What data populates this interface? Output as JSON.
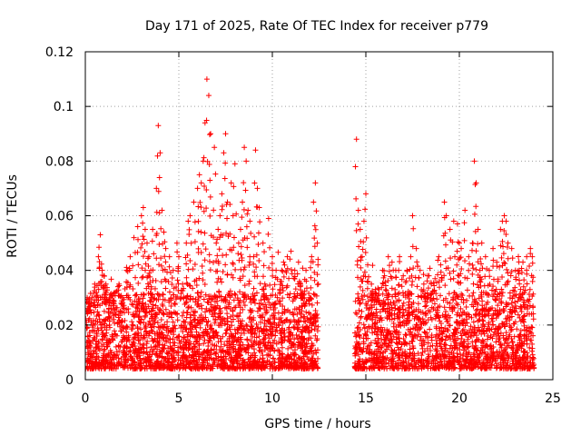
{
  "chart_data": {
    "type": "scatter",
    "title": "Day 171 of 2025, Rate Of TEC Index for receiver p779",
    "xlabel": "GPS time / hours",
    "ylabel": "ROTI / TECUs",
    "xlim": [
      0,
      25
    ],
    "ylim": [
      0,
      0.12
    ],
    "xticks": [
      0,
      5,
      10,
      15,
      20,
      25
    ],
    "xtick_labels": [
      "0",
      "5",
      "10",
      "15",
      "20",
      "25"
    ],
    "yticks": [
      0,
      0.02,
      0.04,
      0.06,
      0.08,
      0.1,
      0.12
    ],
    "ytick_labels": [
      "0",
      "0.02",
      "0.04",
      "0.06",
      "0.08",
      "0.1",
      "0.12"
    ],
    "grid": true,
    "marker": "plus",
    "color": "#ff0000",
    "data_gap_hours": [
      12.45,
      14.4
    ],
    "series": [
      {
        "name": "ROTI",
        "x": [
          0.1,
          0.2,
          0.3,
          0.5,
          0.7,
          0.8,
          0.9,
          1.0,
          1.1,
          1.3,
          1.5,
          1.6,
          1.8,
          2.0,
          2.2,
          2.4,
          2.6,
          2.8,
          3.0,
          3.1,
          3.2,
          3.3,
          3.4,
          3.5,
          3.6,
          3.8,
          3.9,
          4.0,
          4.1,
          4.2,
          4.3,
          4.5,
          4.7,
          4.9,
          5.0,
          5.2,
          5.4,
          5.5,
          5.6,
          5.8,
          6.0,
          6.1,
          6.2,
          6.3,
          6.4,
          6.5,
          6.6,
          6.7,
          6.9,
          7.0,
          7.1,
          7.2,
          7.3,
          7.4,
          7.5,
          7.6,
          7.8,
          7.9,
          8.0,
          8.2,
          8.3,
          8.4,
          8.5,
          8.6,
          8.7,
          8.8,
          9.0,
          9.1,
          9.2,
          9.3,
          9.5,
          9.6,
          9.8,
          10.0,
          10.2,
          10.4,
          10.5,
          10.6,
          10.8,
          11.0,
          11.2,
          11.4,
          11.5,
          11.6,
          11.8,
          12.0,
          12.1,
          12.2,
          12.3,
          12.4,
          14.5,
          14.6,
          14.7,
          14.8,
          14.9,
          15.0,
          15.1,
          15.3,
          15.5,
          15.7,
          15.9,
          16.0,
          16.2,
          16.4,
          16.6,
          16.8,
          17.0,
          17.2,
          17.4,
          17.5,
          17.7,
          17.9,
          18.1,
          18.3,
          18.5,
          18.7,
          18.9,
          19.0,
          19.2,
          19.3,
          19.5,
          19.7,
          19.9,
          20.0,
          20.1,
          20.3,
          20.5,
          20.7,
          20.8,
          20.9,
          21.0,
          21.1,
          21.2,
          21.4,
          21.6,
          21.8,
          22.0,
          22.2,
          22.3,
          22.4,
          22.5,
          22.6,
          22.8,
          23.0,
          23.2,
          23.4,
          23.6,
          23.8,
          23.9
        ],
        "y": [
          0.03,
          0.025,
          0.028,
          0.035,
          0.045,
          0.053,
          0.04,
          0.038,
          0.035,
          0.03,
          0.028,
          0.032,
          0.035,
          0.03,
          0.04,
          0.045,
          0.052,
          0.056,
          0.06,
          0.063,
          0.055,
          0.05,
          0.045,
          0.04,
          0.055,
          0.07,
          0.093,
          0.083,
          0.062,
          0.054,
          0.048,
          0.045,
          0.04,
          0.05,
          0.045,
          0.035,
          0.05,
          0.058,
          0.06,
          0.065,
          0.07,
          0.075,
          0.072,
          0.08,
          0.094,
          0.11,
          0.104,
          0.09,
          0.085,
          0.05,
          0.055,
          0.06,
          0.068,
          0.083,
          0.09,
          0.065,
          0.072,
          0.06,
          0.079,
          0.05,
          0.055,
          0.065,
          0.085,
          0.08,
          0.062,
          0.058,
          0.045,
          0.084,
          0.07,
          0.063,
          0.05,
          0.035,
          0.059,
          0.045,
          0.04,
          0.033,
          0.04,
          0.043,
          0.045,
          0.047,
          0.04,
          0.043,
          0.035,
          0.03,
          0.04,
          0.03,
          0.045,
          0.065,
          0.072,
          0.05,
          0.088,
          0.062,
          0.055,
          0.045,
          0.058,
          0.068,
          0.042,
          0.035,
          0.03,
          0.033,
          0.04,
          0.038,
          0.045,
          0.043,
          0.04,
          0.045,
          0.038,
          0.04,
          0.045,
          0.06,
          0.048,
          0.04,
          0.035,
          0.038,
          0.035,
          0.037,
          0.045,
          0.042,
          0.065,
          0.06,
          0.055,
          0.058,
          0.057,
          0.05,
          0.048,
          0.062,
          0.045,
          0.05,
          0.08,
          0.072,
          0.055,
          0.04,
          0.05,
          0.045,
          0.04,
          0.048,
          0.043,
          0.055,
          0.058,
          0.06,
          0.058,
          0.05,
          0.048,
          0.04,
          0.04,
          0.043,
          0.045,
          0.048,
          0.045
        ]
      }
    ]
  }
}
